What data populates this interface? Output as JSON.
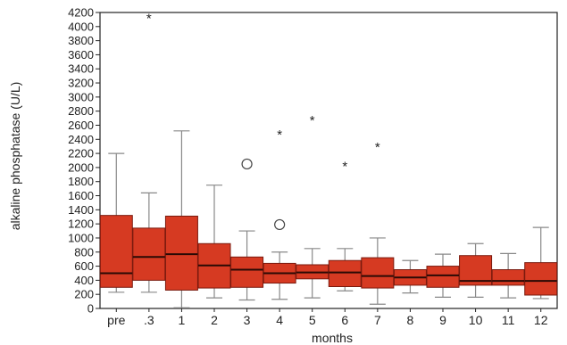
{
  "chart_data": {
    "type": "box",
    "title": "",
    "xlabel": "months",
    "ylabel": "alkaline phosphatase (U/L)",
    "ylim": [
      0,
      4200
    ],
    "yticks": [
      0,
      200,
      400,
      600,
      800,
      1000,
      1200,
      1400,
      1600,
      1800,
      2000,
      2200,
      2400,
      2600,
      2800,
      3000,
      3200,
      3400,
      3600,
      3800,
      4000,
      4200
    ],
    "categories": [
      "pre",
      ".3",
      "1",
      "2",
      "3",
      "4",
      "5",
      "6",
      "7",
      "8",
      "9",
      "10",
      "11",
      "12"
    ],
    "boxes": [
      {
        "min": 230,
        "q1": 300,
        "median": 500,
        "q3": 1320,
        "max": 2200
      },
      {
        "min": 230,
        "q1": 400,
        "median": 730,
        "q3": 1140,
        "max": 1640
      },
      {
        "min": 10,
        "q1": 260,
        "median": 770,
        "q3": 1310,
        "max": 2520
      },
      {
        "min": 150,
        "q1": 290,
        "median": 610,
        "q3": 920,
        "max": 1750
      },
      {
        "min": 120,
        "q1": 300,
        "median": 550,
        "q3": 730,
        "max": 1100
      },
      {
        "min": 130,
        "q1": 360,
        "median": 500,
        "q3": 640,
        "max": 800
      },
      {
        "min": 150,
        "q1": 420,
        "median": 510,
        "q3": 620,
        "max": 850
      },
      {
        "min": 250,
        "q1": 310,
        "median": 510,
        "q3": 680,
        "max": 850
      },
      {
        "min": 60,
        "q1": 290,
        "median": 460,
        "q3": 720,
        "max": 1000
      },
      {
        "min": 220,
        "q1": 330,
        "median": 440,
        "q3": 550,
        "max": 680
      },
      {
        "min": 160,
        "q1": 300,
        "median": 470,
        "q3": 600,
        "max": 770
      },
      {
        "min": 160,
        "q1": 330,
        "median": 390,
        "q3": 750,
        "max": 920
      },
      {
        "min": 150,
        "q1": 330,
        "median": 390,
        "q3": 550,
        "max": 780
      },
      {
        "min": 140,
        "q1": 190,
        "median": 390,
        "q3": 650,
        "max": 1150
      }
    ],
    "outliers": [
      {
        "category": ".3",
        "value": 4130,
        "marker": "star"
      },
      {
        "category": "3",
        "value": 2050,
        "marker": "circle"
      },
      {
        "category": "4",
        "value": 2480,
        "marker": "star"
      },
      {
        "category": "4",
        "value": 1190,
        "marker": "circle"
      },
      {
        "category": "5",
        "value": 2680,
        "marker": "star"
      },
      {
        "category": "6",
        "value": 2030,
        "marker": "star"
      },
      {
        "category": "7",
        "value": 2300,
        "marker": "star"
      }
    ],
    "colors": {
      "box_fill": "#d63a22",
      "box_stroke": "#7a1a0e",
      "whisker": "#888888",
      "median": "#2a0a05"
    }
  }
}
